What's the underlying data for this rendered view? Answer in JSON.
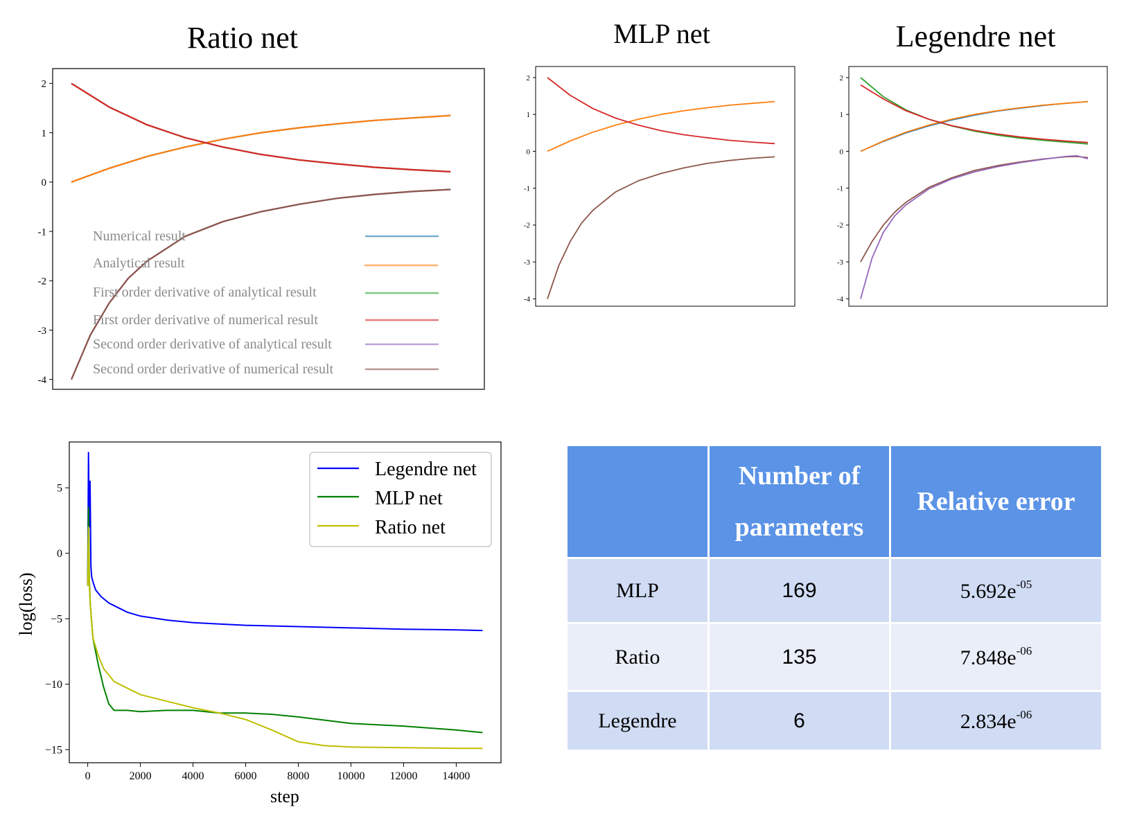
{
  "chart_data": [
    {
      "type": "line",
      "title": "Ratio net",
      "xlim": [
        0,
        1
      ],
      "ylim": [
        -4.2,
        2.3
      ],
      "yticks": [
        2,
        1,
        0,
        -1,
        -2,
        -3,
        -4
      ],
      "ytick_labels": [
        "2",
        "1",
        "0",
        "-1",
        "-2",
        "-3",
        "-4"
      ],
      "legend_position": "lower-left",
      "series": [
        {
          "name": "Numerical result",
          "color": "#1f77b4",
          "x": [
            0,
            0.1,
            0.2,
            0.3,
            0.4,
            0.5,
            0.6,
            0.7,
            0.8,
            0.9,
            1.0
          ],
          "y": [
            0,
            0.28,
            0.52,
            0.71,
            0.87,
            1.0,
            1.1,
            1.18,
            1.25,
            1.3,
            1.35
          ]
        },
        {
          "name": "Analytical result",
          "color": "#ff7f0e",
          "x": [
            0,
            0.1,
            0.2,
            0.3,
            0.4,
            0.5,
            0.6,
            0.7,
            0.8,
            0.9,
            1.0
          ],
          "y": [
            0,
            0.28,
            0.52,
            0.71,
            0.87,
            1.0,
            1.1,
            1.18,
            1.25,
            1.3,
            1.35
          ]
        },
        {
          "name": "First order derivative of analytical result",
          "color": "#2ca02c",
          "x": [
            0,
            0.1,
            0.2,
            0.3,
            0.4,
            0.5,
            0.6,
            0.7,
            0.8,
            0.9,
            1.0
          ],
          "y": [
            2.0,
            1.52,
            1.16,
            0.9,
            0.71,
            0.56,
            0.45,
            0.37,
            0.3,
            0.25,
            0.21
          ]
        },
        {
          "name": "First order derivative of numerical result",
          "color": "#d62728",
          "x": [
            0,
            0.1,
            0.2,
            0.3,
            0.4,
            0.5,
            0.6,
            0.7,
            0.8,
            0.9,
            1.0
          ],
          "y": [
            2.0,
            1.52,
            1.16,
            0.9,
            0.71,
            0.56,
            0.45,
            0.37,
            0.3,
            0.25,
            0.21
          ]
        },
        {
          "name": "Second order derivative of analytical result",
          "color": "#9467bd",
          "x": [
            0,
            0.05,
            0.1,
            0.15,
            0.2,
            0.3,
            0.4,
            0.5,
            0.6,
            0.7,
            0.8,
            0.9,
            1.0
          ],
          "y": [
            -4.0,
            -3.1,
            -2.45,
            -1.95,
            -1.6,
            -1.1,
            -0.8,
            -0.6,
            -0.45,
            -0.33,
            -0.25,
            -0.19,
            -0.15
          ]
        },
        {
          "name": "Second order derivative of numerical result",
          "color": "#8c564b",
          "x": [
            0,
            0.05,
            0.1,
            0.15,
            0.2,
            0.3,
            0.4,
            0.5,
            0.6,
            0.7,
            0.8,
            0.9,
            1.0
          ],
          "y": [
            -4.0,
            -3.1,
            -2.45,
            -1.95,
            -1.6,
            -1.1,
            -0.8,
            -0.6,
            -0.45,
            -0.33,
            -0.25,
            -0.19,
            -0.15
          ]
        }
      ]
    },
    {
      "type": "line",
      "title": "MLP net",
      "xlim": [
        0,
        1
      ],
      "ylim": [
        -4.2,
        2.3
      ],
      "yticks": [
        2,
        1,
        0,
        -1,
        -2,
        -3,
        -4
      ],
      "ytick_labels": [
        "2",
        "1",
        "0",
        "-1",
        "-2",
        "-3",
        "-4"
      ],
      "series": [
        {
          "color": "#ff7f0e",
          "x": [
            0,
            0.1,
            0.2,
            0.3,
            0.4,
            0.5,
            0.6,
            0.7,
            0.8,
            0.9,
            1.0
          ],
          "y": [
            0,
            0.28,
            0.52,
            0.71,
            0.87,
            1.0,
            1.1,
            1.18,
            1.25,
            1.3,
            1.35
          ]
        },
        {
          "color": "#d62728",
          "x": [
            0,
            0.1,
            0.2,
            0.3,
            0.4,
            0.5,
            0.6,
            0.7,
            0.8,
            0.9,
            1.0
          ],
          "y": [
            2.0,
            1.52,
            1.16,
            0.9,
            0.71,
            0.56,
            0.45,
            0.37,
            0.3,
            0.25,
            0.21
          ]
        },
        {
          "color": "#8c564b",
          "x": [
            0,
            0.05,
            0.1,
            0.15,
            0.2,
            0.3,
            0.4,
            0.5,
            0.6,
            0.7,
            0.8,
            0.9,
            1.0
          ],
          "y": [
            -4.0,
            -3.1,
            -2.45,
            -1.95,
            -1.6,
            -1.1,
            -0.8,
            -0.6,
            -0.45,
            -0.33,
            -0.25,
            -0.19,
            -0.15
          ]
        }
      ]
    },
    {
      "type": "line",
      "title": "Legendre net",
      "xlim": [
        0,
        1
      ],
      "ylim": [
        -4.2,
        2.3
      ],
      "yticks": [
        2,
        1,
        0,
        -1,
        -2,
        -3,
        -4
      ],
      "ytick_labels": [
        "2",
        "1",
        "0",
        "-1",
        "-2",
        "-3",
        "-4"
      ],
      "series": [
        {
          "color": "#1f77b4",
          "x": [
            0,
            0.1,
            0.2,
            0.3,
            0.4,
            0.5,
            0.6,
            0.7,
            0.8,
            0.9,
            1.0
          ],
          "y": [
            0,
            0.27,
            0.5,
            0.69,
            0.85,
            0.98,
            1.09,
            1.17,
            1.24,
            1.3,
            1.35
          ]
        },
        {
          "color": "#ff7f0e",
          "x": [
            0,
            0.1,
            0.2,
            0.3,
            0.4,
            0.5,
            0.6,
            0.7,
            0.8,
            0.9,
            1.0
          ],
          "y": [
            0,
            0.28,
            0.52,
            0.71,
            0.87,
            1.0,
            1.1,
            1.18,
            1.25,
            1.3,
            1.35
          ]
        },
        {
          "color": "#2ca02c",
          "x": [
            0,
            0.1,
            0.2,
            0.3,
            0.4,
            0.5,
            0.6,
            0.7,
            0.8,
            0.9,
            1.0
          ],
          "y": [
            2.0,
            1.48,
            1.12,
            0.87,
            0.69,
            0.55,
            0.44,
            0.36,
            0.3,
            0.25,
            0.2
          ]
        },
        {
          "color": "#d62728",
          "x": [
            0,
            0.1,
            0.2,
            0.3,
            0.4,
            0.5,
            0.6,
            0.7,
            0.8,
            0.9,
            1.0
          ],
          "y": [
            1.8,
            1.42,
            1.1,
            0.87,
            0.7,
            0.57,
            0.47,
            0.39,
            0.33,
            0.28,
            0.24
          ]
        },
        {
          "color": "#8c564b",
          "x": [
            0,
            0.05,
            0.1,
            0.15,
            0.2,
            0.3,
            0.4,
            0.5,
            0.6,
            0.7,
            0.8,
            0.9,
            0.95,
            1.0
          ],
          "y": [
            -3.0,
            -2.45,
            -2.0,
            -1.65,
            -1.38,
            -0.98,
            -0.72,
            -0.52,
            -0.39,
            -0.29,
            -0.21,
            -0.15,
            -0.14,
            -0.17
          ]
        },
        {
          "color": "#9467bd",
          "x": [
            0,
            0.05,
            0.1,
            0.15,
            0.2,
            0.3,
            0.4,
            0.5,
            0.6,
            0.7,
            0.8,
            0.9,
            0.95,
            1.0
          ],
          "y": [
            -4.0,
            -2.9,
            -2.2,
            -1.75,
            -1.45,
            -1.02,
            -0.75,
            -0.56,
            -0.42,
            -0.31,
            -0.22,
            -0.14,
            -0.12,
            -0.2
          ]
        }
      ]
    },
    {
      "type": "line",
      "xlabel": "step",
      "ylabel": "log(loss)",
      "xlim": [
        -700,
        15700
      ],
      "ylim": [
        -16,
        8.5
      ],
      "xticks": [
        0,
        2000,
        4000,
        6000,
        8000,
        10000,
        12000,
        14000
      ],
      "xtick_labels": [
        "0",
        "2000",
        "4000",
        "6000",
        "8000",
        "10000",
        "12000",
        "14000"
      ],
      "yticks": [
        5,
        0,
        -5,
        -10,
        -15
      ],
      "ytick_labels": [
        "5",
        "0",
        "−5",
        "−10",
        "−15"
      ],
      "legend_position": "top-right",
      "series": [
        {
          "name": "Legendre net",
          "color": "#0000ff",
          "x": [
            0,
            30,
            60,
            90,
            120,
            150,
            200,
            300,
            500,
            800,
            1000,
            1500,
            2000,
            3000,
            4000,
            5000,
            6000,
            8000,
            10000,
            12000,
            14000,
            15000
          ],
          "y": [
            -2.5,
            7.7,
            2.0,
            5.5,
            -1.0,
            -1.8,
            -2.2,
            -2.8,
            -3.3,
            -3.8,
            -4.0,
            -4.5,
            -4.8,
            -5.1,
            -5.3,
            -5.4,
            -5.5,
            -5.6,
            -5.7,
            -5.8,
            -5.85,
            -5.9
          ]
        },
        {
          "name": "MLP net",
          "color": "#008000",
          "x": [
            0,
            30,
            60,
            100,
            200,
            400,
            600,
            800,
            1000,
            1500,
            2000,
            3000,
            4000,
            5000,
            6000,
            7000,
            8000,
            10000,
            12000,
            14000,
            15000
          ],
          "y": [
            -2.0,
            3.5,
            -2.0,
            -4.0,
            -6.5,
            -8.5,
            -10.2,
            -11.5,
            -12.0,
            -12.0,
            -12.1,
            -12.0,
            -12.0,
            -12.2,
            -12.2,
            -12.3,
            -12.5,
            -13.0,
            -13.2,
            -13.5,
            -13.7
          ]
        },
        {
          "name": "Ratio net",
          "color": "#bfbf00",
          "x": [
            0,
            30,
            60,
            100,
            200,
            400,
            600,
            800,
            1000,
            1500,
            2000,
            3000,
            4000,
            5000,
            6000,
            7000,
            8000,
            9000,
            10000,
            12000,
            14000,
            15000
          ],
          "y": [
            -2.5,
            2.0,
            -2.5,
            -4.0,
            -6.5,
            -7.8,
            -8.8,
            -9.3,
            -9.8,
            -10.3,
            -10.8,
            -11.3,
            -11.8,
            -12.2,
            -12.7,
            -13.5,
            -14.4,
            -14.7,
            -14.8,
            -14.85,
            -14.9,
            -14.9
          ]
        }
      ]
    }
  ],
  "table": {
    "headers": [
      "",
      "Number of parameters",
      "Relative error"
    ],
    "rows": [
      {
        "label": "MLP",
        "params": "169",
        "error_base": "5.692e",
        "error_exp": "-05"
      },
      {
        "label": "Ratio",
        "params": "135",
        "error_base": "7.848e",
        "error_exp": "-06"
      },
      {
        "label": "Legendre",
        "params": "6",
        "error_base": "2.834e",
        "error_exp": "-06"
      }
    ]
  }
}
